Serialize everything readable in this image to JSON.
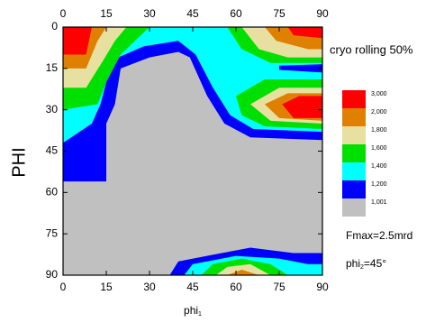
{
  "chart_data": {
    "type": "contour",
    "ylabel": "PHI",
    "xlabel": {
      "text": "phi",
      "sub": "1"
    },
    "annotations": [
      {
        "text": "cryo rolling 50%"
      },
      {
        "text": "Fmax=2.5mrd"
      },
      {
        "text": "phi",
        "sub": "2",
        "rest": "=45°"
      }
    ],
    "xlim": [
      0,
      90
    ],
    "ylim": [
      90,
      0
    ],
    "xticks": [
      0,
      15,
      30,
      45,
      60,
      75,
      90
    ],
    "yticks": [
      0,
      15,
      30,
      45,
      60,
      75,
      90
    ],
    "levels": [
      {
        "value": 3000,
        "label": "3,000",
        "color": "#ff0000"
      },
      {
        "value": 2000,
        "label": "2,000",
        "color": "#e08000"
      },
      {
        "value": 1800,
        "label": "1,800",
        "color": "#e8e0a0"
      },
      {
        "value": 1600,
        "label": "1,600",
        "color": "#00e000"
      },
      {
        "value": 1400,
        "label": "1,400",
        "color": "#00ffff"
      },
      {
        "value": 1200,
        "label": "1,200",
        "color": "#0000ff"
      },
      {
        "value": 1001,
        "label": "1,001",
        "color": "#c0c0c0"
      }
    ],
    "regions": [
      {
        "level": 5,
        "points": [
          [
            0,
            0
          ],
          [
            90,
            0
          ],
          [
            90,
            41
          ],
          [
            65,
            40
          ],
          [
            56,
            35
          ],
          [
            50,
            25
          ],
          [
            44,
            11
          ],
          [
            40,
            9
          ],
          [
            30,
            11
          ],
          [
            20,
            15
          ],
          [
            18,
            28
          ],
          [
            15,
            35
          ],
          [
            15,
            56
          ],
          [
            0,
            56
          ]
        ]
      },
      {
        "level": 4,
        "points": [
          [
            0,
            0
          ],
          [
            90,
            0
          ],
          [
            90,
            38
          ],
          [
            66,
            37
          ],
          [
            58,
            32
          ],
          [
            52,
            22
          ],
          [
            46,
            10
          ],
          [
            40,
            5
          ],
          [
            28,
            7
          ],
          [
            17,
            12
          ],
          [
            15,
            20
          ],
          [
            13,
            28
          ],
          [
            10,
            35
          ],
          [
            0,
            42
          ]
        ]
      },
      {
        "level": 5,
        "points": [
          [
            75,
            14
          ],
          [
            90,
            13.5
          ],
          [
            90,
            16.5
          ],
          [
            75,
            15.5
          ]
        ]
      },
      {
        "level": 3,
        "points": [
          [
            0,
            0
          ],
          [
            0,
            30
          ],
          [
            12,
            28
          ],
          [
            15,
            20
          ],
          [
            20,
            10
          ],
          [
            25,
            5
          ],
          [
            30,
            0
          ]
        ]
      },
      {
        "level": 2,
        "points": [
          [
            0,
            0
          ],
          [
            0,
            22
          ],
          [
            8,
            22
          ],
          [
            14,
            12
          ],
          [
            18,
            5
          ],
          [
            22,
            0
          ]
        ]
      },
      {
        "level": 1,
        "points": [
          [
            0,
            0
          ],
          [
            0,
            15
          ],
          [
            8,
            15
          ],
          [
            12,
            5
          ],
          [
            15,
            0
          ]
        ]
      },
      {
        "level": 0,
        "points": [
          [
            0,
            0
          ],
          [
            0,
            10
          ],
          [
            8,
            10
          ],
          [
            10,
            0
          ]
        ]
      },
      {
        "level": 3,
        "points": [
          [
            57,
            0
          ],
          [
            62,
            8
          ],
          [
            72,
            13
          ],
          [
            90,
            13
          ],
          [
            90,
            0
          ]
        ]
      },
      {
        "level": 2,
        "points": [
          [
            62,
            0
          ],
          [
            68,
            8
          ],
          [
            78,
            11
          ],
          [
            90,
            11
          ],
          [
            90,
            0
          ]
        ]
      },
      {
        "level": 1,
        "points": [
          [
            70,
            0
          ],
          [
            74,
            5
          ],
          [
            85,
            8
          ],
          [
            90,
            8
          ],
          [
            90,
            0
          ]
        ]
      },
      {
        "level": 0,
        "points": [
          [
            78,
            0
          ],
          [
            80,
            3
          ],
          [
            90,
            4
          ],
          [
            90,
            0
          ]
        ]
      },
      {
        "level": 3,
        "points": [
          [
            60,
            25
          ],
          [
            70,
            19
          ],
          [
            90,
            19
          ],
          [
            90,
            37
          ],
          [
            70,
            36
          ],
          [
            62,
            32
          ]
        ]
      },
      {
        "level": 2,
        "points": [
          [
            65,
            28
          ],
          [
            75,
            22
          ],
          [
            90,
            22
          ],
          [
            90,
            35
          ],
          [
            72,
            34
          ]
        ]
      },
      {
        "level": 1,
        "points": [
          [
            70,
            28
          ],
          [
            78,
            24
          ],
          [
            90,
            24
          ],
          [
            90,
            34
          ],
          [
            75,
            33
          ]
        ]
      },
      {
        "level": 0,
        "points": [
          [
            76,
            28
          ],
          [
            82,
            25
          ],
          [
            90,
            25
          ],
          [
            90,
            33
          ],
          [
            80,
            33
          ]
        ]
      },
      {
        "level": 5,
        "points": [
          [
            37,
            90
          ],
          [
            40,
            85
          ],
          [
            55,
            82
          ],
          [
            65,
            80
          ],
          [
            80,
            82
          ],
          [
            90,
            82
          ],
          [
            90,
            90
          ]
        ]
      },
      {
        "level": 4,
        "points": [
          [
            42,
            90
          ],
          [
            45,
            86
          ],
          [
            60,
            83
          ],
          [
            75,
            84
          ],
          [
            85,
            86
          ],
          [
            90,
            86
          ],
          [
            90,
            90
          ]
        ]
      },
      {
        "level": 3,
        "points": [
          [
            48,
            90
          ],
          [
            52,
            86
          ],
          [
            62,
            84
          ],
          [
            72,
            86
          ],
          [
            78,
            90
          ]
        ]
      },
      {
        "level": 2,
        "points": [
          [
            53,
            90
          ],
          [
            57,
            87
          ],
          [
            65,
            86
          ],
          [
            72,
            90
          ]
        ]
      },
      {
        "level": 1,
        "points": [
          [
            57,
            90
          ],
          [
            62,
            88
          ],
          [
            68,
            90
          ]
        ]
      }
    ]
  }
}
